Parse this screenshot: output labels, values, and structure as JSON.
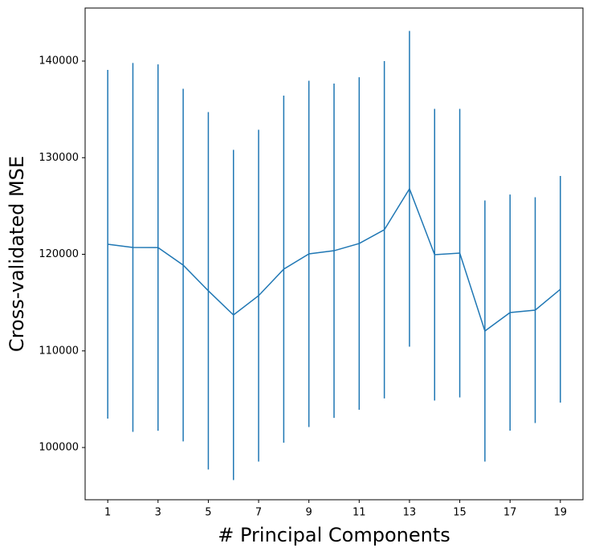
{
  "chart_data": {
    "type": "line",
    "xlabel": "# Principal Components",
    "ylabel": "Cross-validated MSE",
    "x": [
      1,
      2,
      3,
      4,
      5,
      6,
      7,
      8,
      9,
      10,
      11,
      12,
      13,
      14,
      15,
      16,
      17,
      18,
      19
    ],
    "series": [
      {
        "color": "#1f77b4",
        "values": [
          121040,
          120710,
          120700,
          118880,
          116220,
          113720,
          115720,
          118460,
          120040,
          120370,
          121120,
          122540,
          126780,
          119960,
          120120,
          112060,
          113970,
          114220,
          116380
        ],
        "errors": [
          18050,
          19090,
          18960,
          18250,
          18500,
          17090,
          17170,
          17960,
          17920,
          17300,
          17210,
          17460,
          16340,
          15090,
          14930,
          13510,
          12220,
          11680,
          11730
        ]
      }
    ],
    "xlim": [
      0.1,
      19.9
    ],
    "ylim": [
      94595,
      145489
    ],
    "xticks": [
      1,
      3,
      5,
      7,
      9,
      11,
      13,
      15,
      17,
      19
    ],
    "yticks": [
      100000,
      110000,
      120000,
      130000,
      140000
    ]
  }
}
